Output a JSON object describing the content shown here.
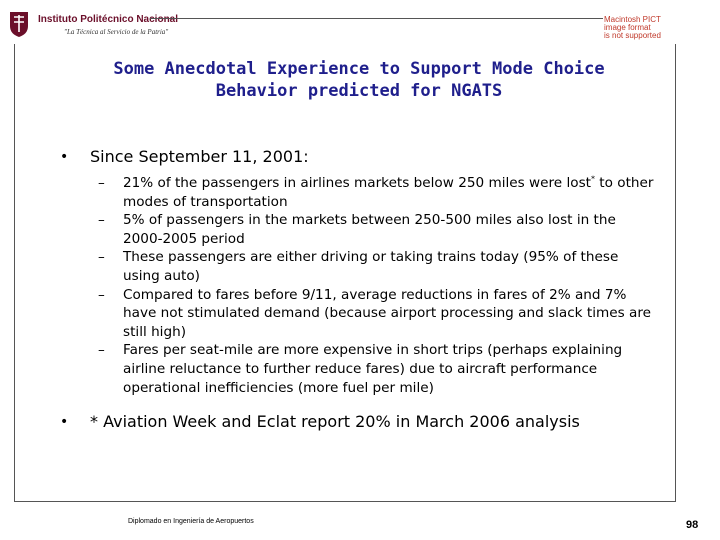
{
  "header": {
    "institution_name": "Instituto Politécnico Nacional",
    "motto": "\"La Técnica al Servicio de la Patria\"",
    "missing_image_text": [
      "Macintosh PICT",
      "image format",
      "is not supported"
    ]
  },
  "slide": {
    "title_line1": "Some Anecdotal Experience to Support Mode Choice",
    "title_line2": "Behavior predicted for NGATS",
    "bullet_main": "Since September 11, 2001:",
    "bullet_symbol": "•",
    "dash_symbol": "–",
    "sub_items": [
      {
        "before": "21% of the passengers in airlines markets below 250 miles were lost",
        "sup": "*",
        "after": " to other modes of transportation"
      },
      {
        "text": "5% of passengers in the markets between 250-500 miles also lost in the 2000-2005 period"
      },
      {
        "text": "These passengers are either driving or taking trains today (95% of these using auto)"
      },
      {
        "text": "Compared to fares before 9/11, average reductions in fares of 2% and 7% have not stimulated demand (because airport processing and slack times are still high)"
      },
      {
        "text": "Fares per seat-mile are more expensive in short trips (perhaps explaining airline reluctance to further reduce fares) due to aircraft performance operational inefficiencies (more fuel per mile)"
      }
    ],
    "bullet_note": "* Aviation Week and Eclat report 20% in March 2006 analysis"
  },
  "footer": {
    "text": "Diplomado en Ingeniería de Aeropuertos",
    "page_number": "98"
  },
  "colors": {
    "title": "#1f1f8c",
    "institution": "#6b0f2a",
    "missing_image": "#c0392b"
  }
}
